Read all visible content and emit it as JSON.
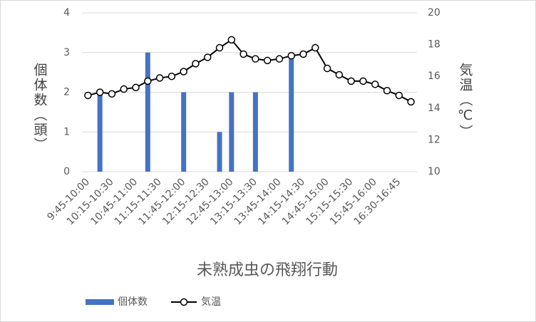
{
  "chart_data": {
    "type": "combo",
    "title": "未熟成虫の飛翔行動",
    "y_label": "個体数（頭）",
    "y2_label": "気温（℃）",
    "categories": [
      "9:45-10:00",
      null,
      "10:15-10:30",
      null,
      "10:45-11:00",
      null,
      "11:15-11:30",
      null,
      "11:45-12:00",
      null,
      "12:15-12:30",
      null,
      "12:45-13:00",
      null,
      "13:15-13:30",
      null,
      "13:45-14:00",
      null,
      "14:15-14:30",
      null,
      "14:45-15:00",
      null,
      "15:15-15:30",
      null,
      "15:45-16:00",
      null,
      "16:30-16:45",
      null
    ],
    "series": [
      {
        "name": "個体数",
        "type": "bar",
        "color": "#4472c4",
        "values": [
          0,
          2,
          0,
          0,
          0,
          3,
          0,
          0,
          2,
          0,
          0,
          1,
          2,
          0,
          2,
          0,
          0,
          3,
          0,
          0,
          0,
          0,
          0,
          0,
          0,
          0,
          0,
          0
        ]
      },
      {
        "name": "気温",
        "type": "line",
        "axis": "y2",
        "color": "#000000",
        "values": [
          14.8,
          15.0,
          14.9,
          15.2,
          15.3,
          15.7,
          15.9,
          16.0,
          16.3,
          16.8,
          17.2,
          17.8,
          18.3,
          17.4,
          17.1,
          17.0,
          17.1,
          17.3,
          17.4,
          17.8,
          16.5,
          16.1,
          15.7,
          15.7,
          15.5,
          15.1,
          14.8,
          14.4
        ]
      }
    ],
    "ylim": [
      0,
      4
    ],
    "yticks": [
      0,
      1,
      2,
      3,
      4
    ],
    "y2lim": [
      10,
      20
    ],
    "y2ticks": [
      10,
      12,
      14,
      16,
      18,
      20
    ],
    "grid": true,
    "legend": "bottom"
  }
}
